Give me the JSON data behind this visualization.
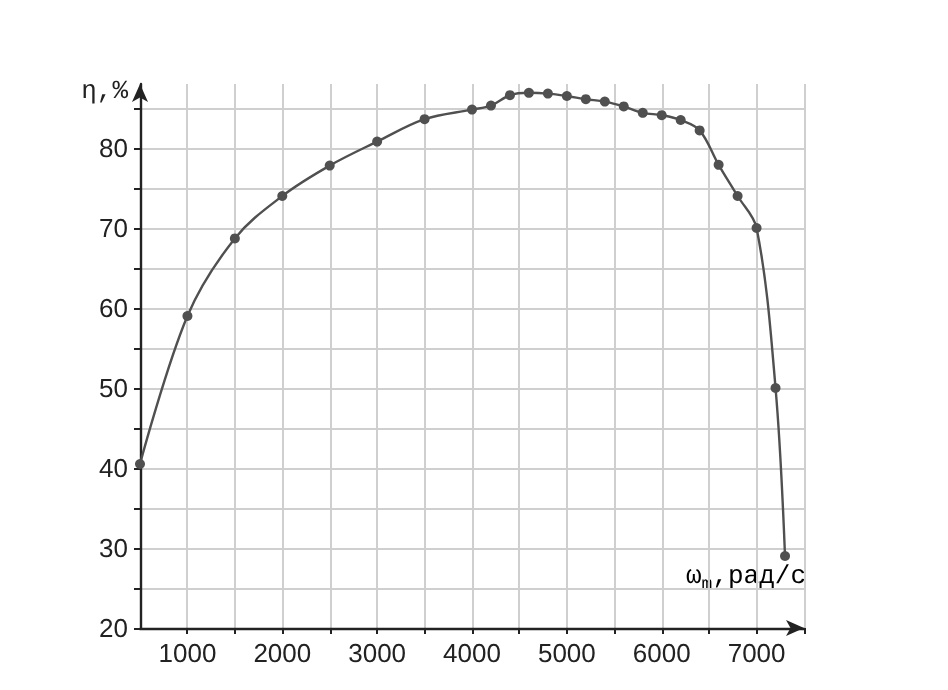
{
  "chart_data": {
    "type": "line",
    "xlabel": "ω$_{m}$,рад/с",
    "ylabel": "η,%",
    "x": [
      500,
      1000,
      1500,
      2000,
      2500,
      3000,
      3500,
      4000,
      4200,
      4400,
      4600,
      4800,
      5000,
      5200,
      5400,
      5600,
      5800,
      6000,
      6200,
      6400,
      6600,
      6800,
      7000,
      7200,
      7300
    ],
    "series": [
      {
        "color": "#505050",
        "values": [
          40.5,
          59,
          68.7,
          74,
          77.8,
          80.8,
          83.6,
          84.8,
          85.3,
          86.6,
          86.9,
          86.8,
          86.5,
          86.1,
          85.8,
          85.2,
          84.4,
          84.1,
          83.5,
          82.2,
          77.9,
          74,
          70,
          50,
          29
        ]
      }
    ],
    "xlim": [
      500,
      7500
    ],
    "ylim": [
      20,
      88
    ],
    "xticks": [
      1000,
      {
        "value": 1500,
        "label": null
      },
      2000,
      {
        "value": 2500,
        "label": null
      },
      3000,
      {
        "value": 3500,
        "label": null
      },
      4000,
      {
        "value": 4500,
        "label": null
      },
      5000,
      {
        "value": 5500,
        "label": null
      },
      6000,
      {
        "value": 6500,
        "label": null
      },
      7000,
      {
        "value": 7500,
        "label": null
      }
    ],
    "yticks": [
      20,
      {
        "value": 25,
        "label": null
      },
      30,
      {
        "value": 35,
        "label": null
      },
      40,
      {
        "value": 45,
        "label": null
      },
      50,
      {
        "value": 55,
        "label": null
      },
      60,
      {
        "value": 65,
        "label": null
      },
      70,
      {
        "value": 75,
        "label": null
      },
      80,
      {
        "value": 85,
        "label": null
      }
    ],
    "grid": true,
    "marker": "circle",
    "line_style": "solid"
  }
}
